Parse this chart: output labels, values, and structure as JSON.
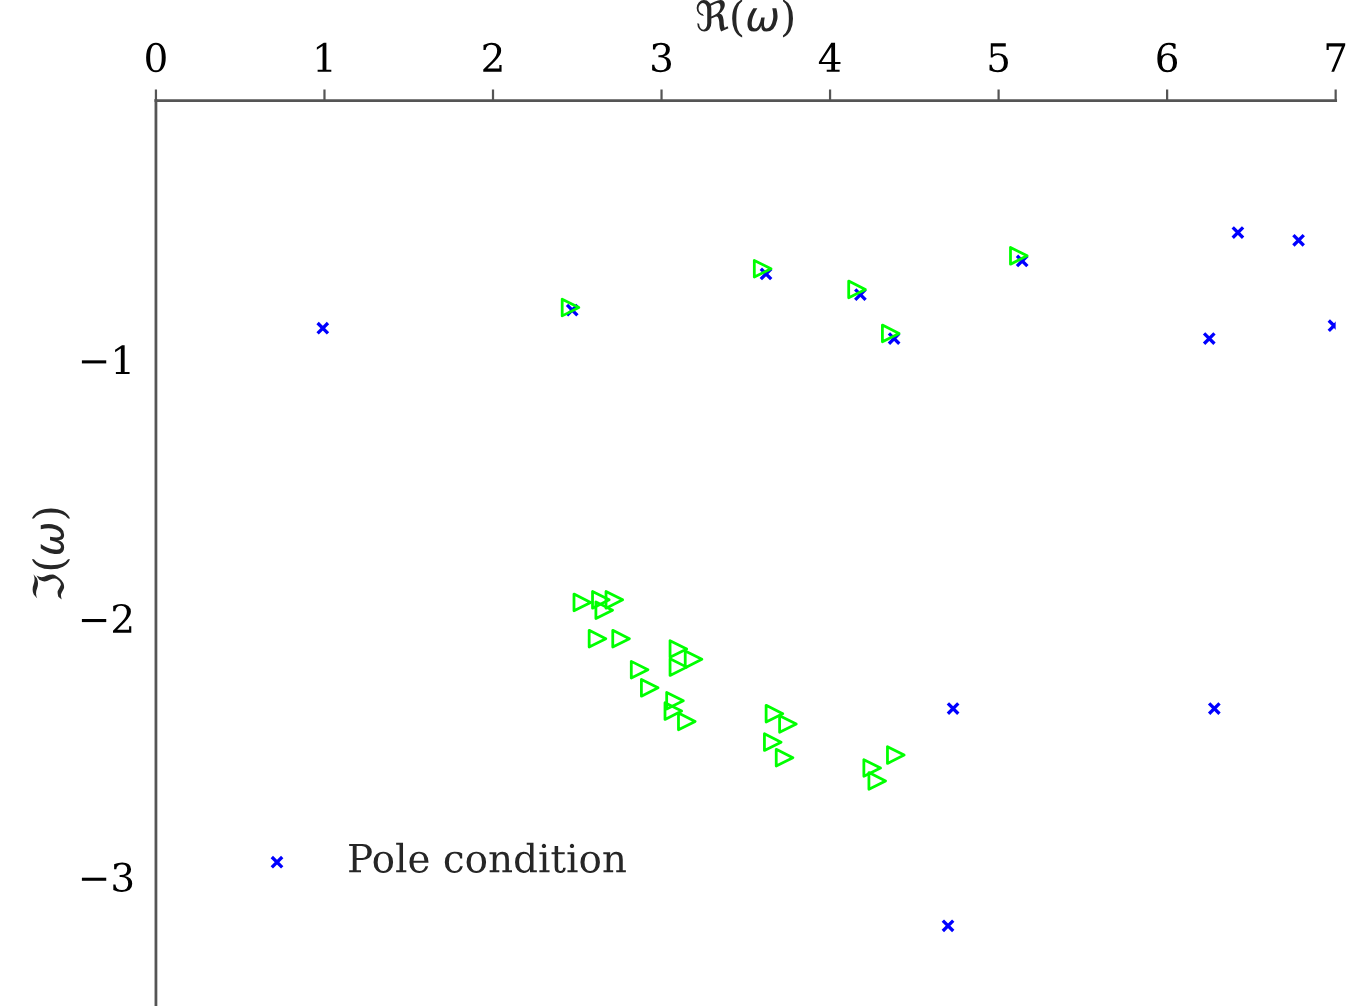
{
  "chart_data": {
    "type": "scatter",
    "xlabel": "ℜ(ω)",
    "ylabel": "ℑ(ω)",
    "xlim": [
      0,
      7
    ],
    "xticks": [
      0,
      1,
      2,
      3,
      4,
      5,
      6,
      7
    ],
    "ylim": [
      -3.5,
      0
    ],
    "yticks": [
      {
        "value": -1,
        "label": "−1"
      },
      {
        "value": -2,
        "label": "−2"
      },
      {
        "value": -3,
        "label": "−3"
      }
    ],
    "grid": false,
    "legend": "bottom left",
    "series": [
      {
        "name": "Pole condition",
        "color": "#0000ff",
        "marker": "cross",
        "x": [
          0.99,
          2.47,
          3.62,
          4.18,
          4.38,
          5.14,
          6.25,
          6.42,
          6.78,
          6.99,
          4.73,
          4.7,
          6.28
        ],
        "values": [
          -0.88,
          -0.81,
          -0.67,
          -0.75,
          -0.92,
          -0.62,
          -0.92,
          -0.51,
          -0.54,
          -0.87,
          -2.35,
          -3.19,
          -2.35
        ]
      },
      {
        "color": "#00ff00",
        "marker": "triangle",
        "x": [
          2.46,
          3.6,
          4.16,
          4.36,
          5.12,
          2.53,
          2.64,
          2.66,
          2.72,
          2.62,
          2.76,
          2.87,
          2.93,
          3.1,
          3.19,
          3.1,
          3.08,
          3.07,
          3.15,
          3.67,
          3.75,
          3.66,
          3.73,
          4.39,
          4.25,
          4.28
        ],
        "values": [
          -0.8,
          -0.65,
          -0.73,
          -0.9,
          -0.6,
          -1.94,
          -1.93,
          -1.97,
          -1.93,
          -2.08,
          -2.08,
          -2.2,
          -2.27,
          -2.12,
          -2.16,
          -2.19,
          -2.32,
          -2.36,
          -2.4,
          -2.37,
          -2.41,
          -2.48,
          -2.54,
          -2.53,
          -2.58,
          -2.63
        ]
      }
    ]
  }
}
